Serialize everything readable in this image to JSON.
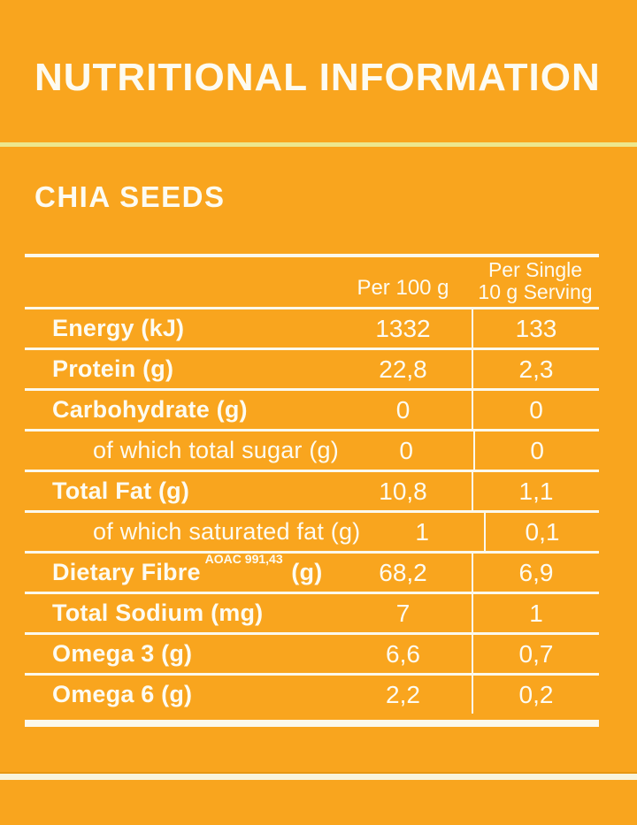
{
  "header": {
    "title": "NUTRITIONAL INFORMATION",
    "product_name": "CHIA SEEDS"
  },
  "table": {
    "column_headers": {
      "per_100g": "Per 100 g",
      "per_serving_line1": "Per Single",
      "per_serving_line2": "10 g Serving"
    },
    "rows": [
      {
        "label": "Energy (kJ)",
        "emphasis": true,
        "per_100g": "1332",
        "per_serving": "133"
      },
      {
        "label": "Protein (g)",
        "emphasis": true,
        "per_100g": "22,8",
        "per_serving": "2,3"
      },
      {
        "label": "Carbohydrate (g)",
        "emphasis": true,
        "per_100g": "0",
        "per_serving": "0"
      },
      {
        "label": "of which total sugar (g)",
        "emphasis": false,
        "per_100g": "0",
        "per_serving": "0"
      },
      {
        "label": "Total Fat (g)",
        "emphasis": true,
        "per_100g": "10,8",
        "per_serving": "1,1"
      },
      {
        "label": "of which saturated fat (g)",
        "emphasis": false,
        "per_100g": "1",
        "per_serving": "0,1"
      },
      {
        "label": "Dietary Fibre",
        "superscript": "AOAC 991,43",
        "label_suffix": "(g)",
        "emphasis": true,
        "per_100g": "68,2",
        "per_serving": "6,9"
      },
      {
        "label": "Total Sodium (mg)",
        "emphasis": true,
        "per_100g": "7",
        "per_serving": "1"
      },
      {
        "label": "Omega 3 (g)",
        "emphasis": true,
        "per_100g": "6,6",
        "per_serving": "0,7"
      },
      {
        "label": "Omega 6 (g)",
        "emphasis": true,
        "per_100g": "2,2",
        "per_serving": "0,2"
      }
    ]
  },
  "colors": {
    "background": "#F9A51E",
    "text": "#FDFBF1",
    "table_rule": "#FCF9EC",
    "accent_divider": "#EDE78D",
    "bottom_band": "#F9F4DC"
  }
}
